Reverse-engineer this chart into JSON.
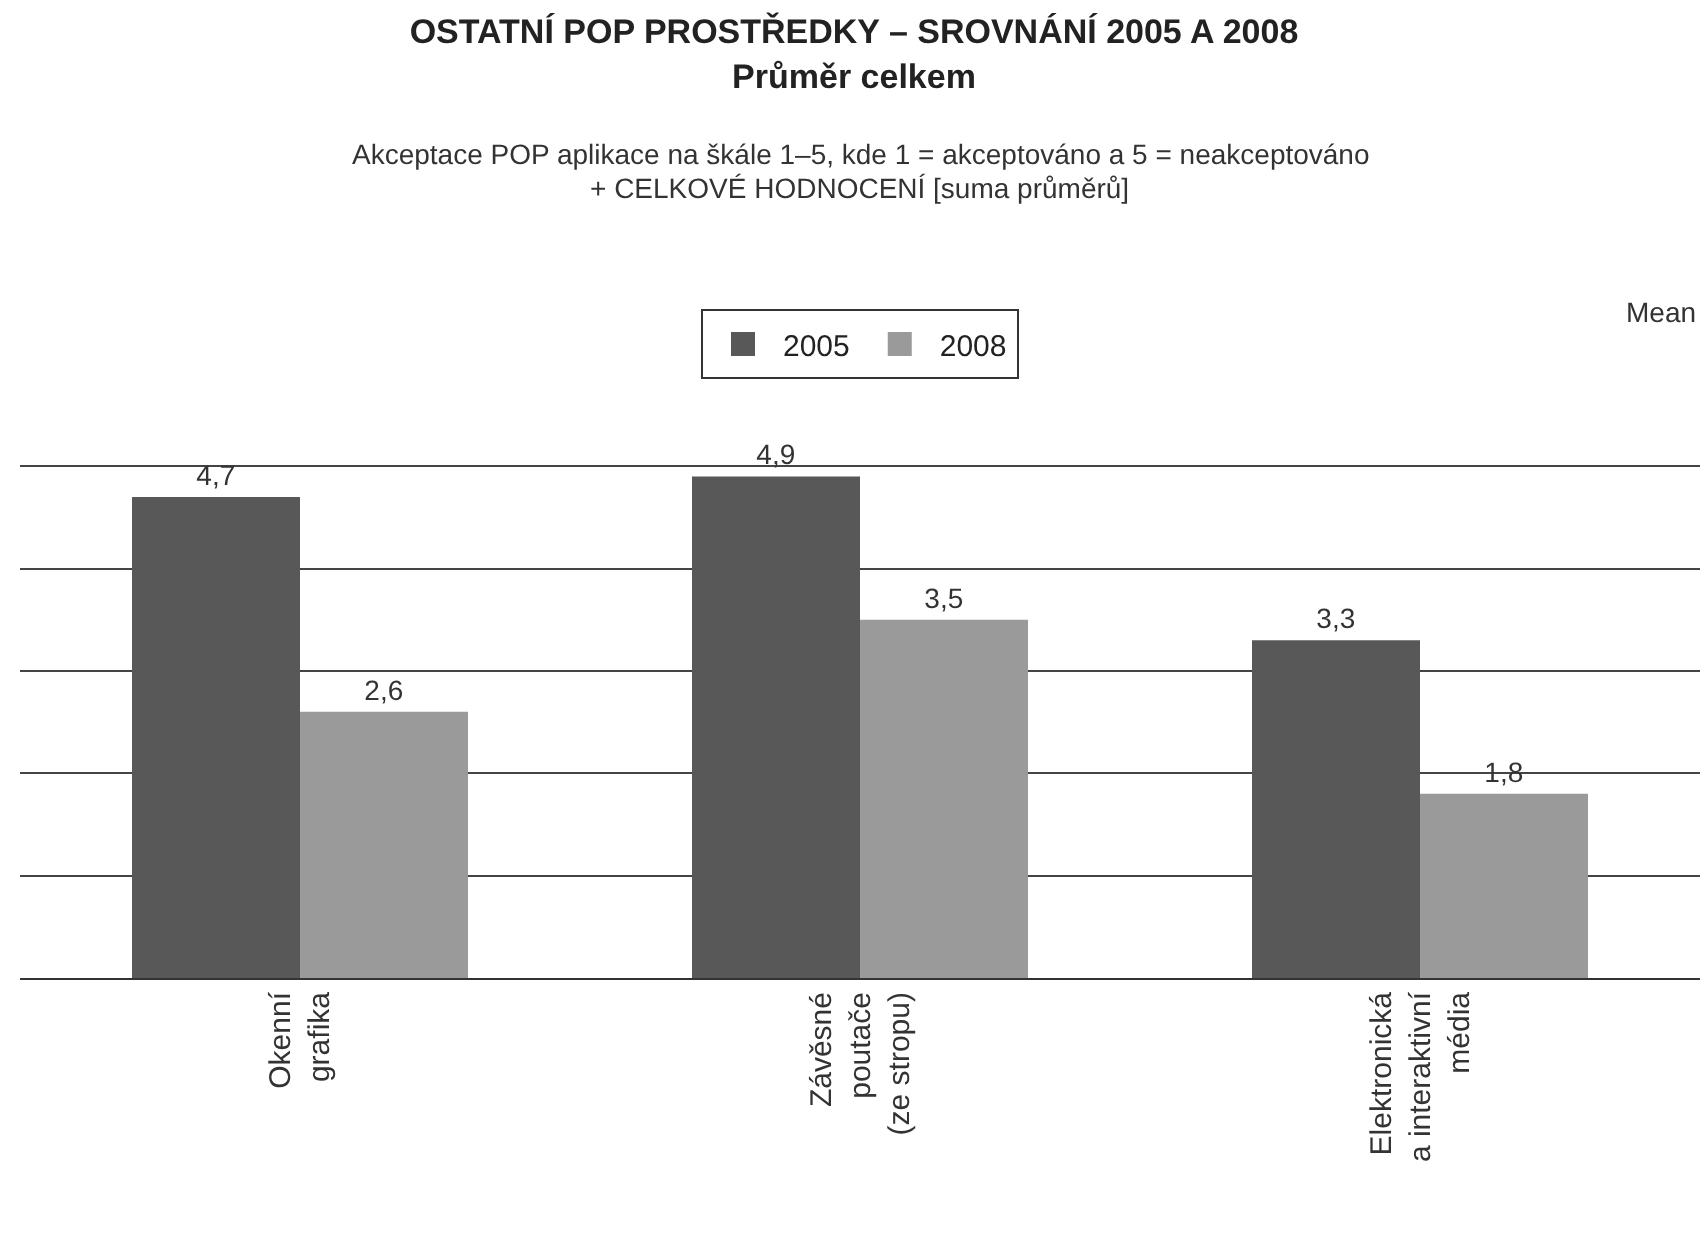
{
  "chart_data": {
    "type": "bar",
    "title": "OSTATNÍ POP PROSTŘEDKY – SROVNÁNÍ 2005 A 2008",
    "subtitle": "Průměr celkem",
    "annotations": [
      "Akceptace POP aplikace na škále 1–5, kde 1 = akceptováno a 5 = neakceptováno",
      "+ CELKOVÉ HODNOCENÍ [suma průměrů]",
      "Mean"
    ],
    "categories": [
      "Okenní grafika",
      "Závěsné poutače (ze stropu)",
      "Elektronická a interaktivní média"
    ],
    "series": [
      {
        "name": "2005",
        "color": "#585858",
        "values": [
          4.7,
          4.9,
          3.3
        ],
        "value_labels": [
          "4,7",
          "4,9",
          "3,3"
        ]
      },
      {
        "name": "2008",
        "color": "#9a9a9a",
        "values": [
          2.6,
          3.5,
          1.8
        ],
        "value_labels": [
          "2,6",
          "3,5",
          "1,8"
        ]
      }
    ],
    "grid": "y",
    "legend": "top",
    "tick_labels": "x"
  }
}
